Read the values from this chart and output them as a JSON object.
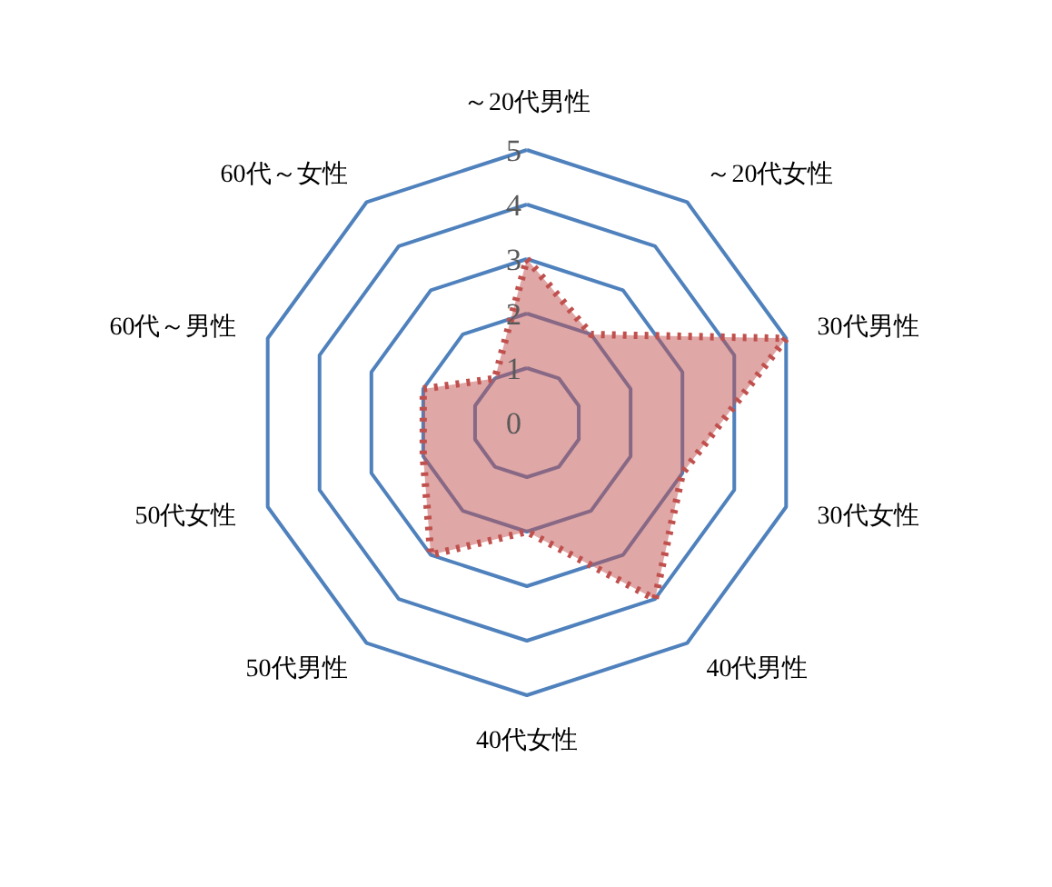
{
  "chart_data": {
    "type": "radar",
    "categories": [
      "～20代男性",
      "～20代女性",
      "30代男性",
      "30代女性",
      "40代男性",
      "40代女性",
      "50代男性",
      "50代女性",
      "60代～男性",
      "60代～女性"
    ],
    "series": [
      {
        "color": "#c0504d",
        "values": [
          3,
          2,
          5,
          3,
          4,
          2,
          3,
          2,
          2,
          1
        ]
      }
    ],
    "ylim": [
      0,
      5
    ],
    "yticks": [
      0,
      1,
      2,
      3,
      4,
      5
    ],
    "grid": true,
    "line_style": "dotted",
    "marker": "none"
  }
}
